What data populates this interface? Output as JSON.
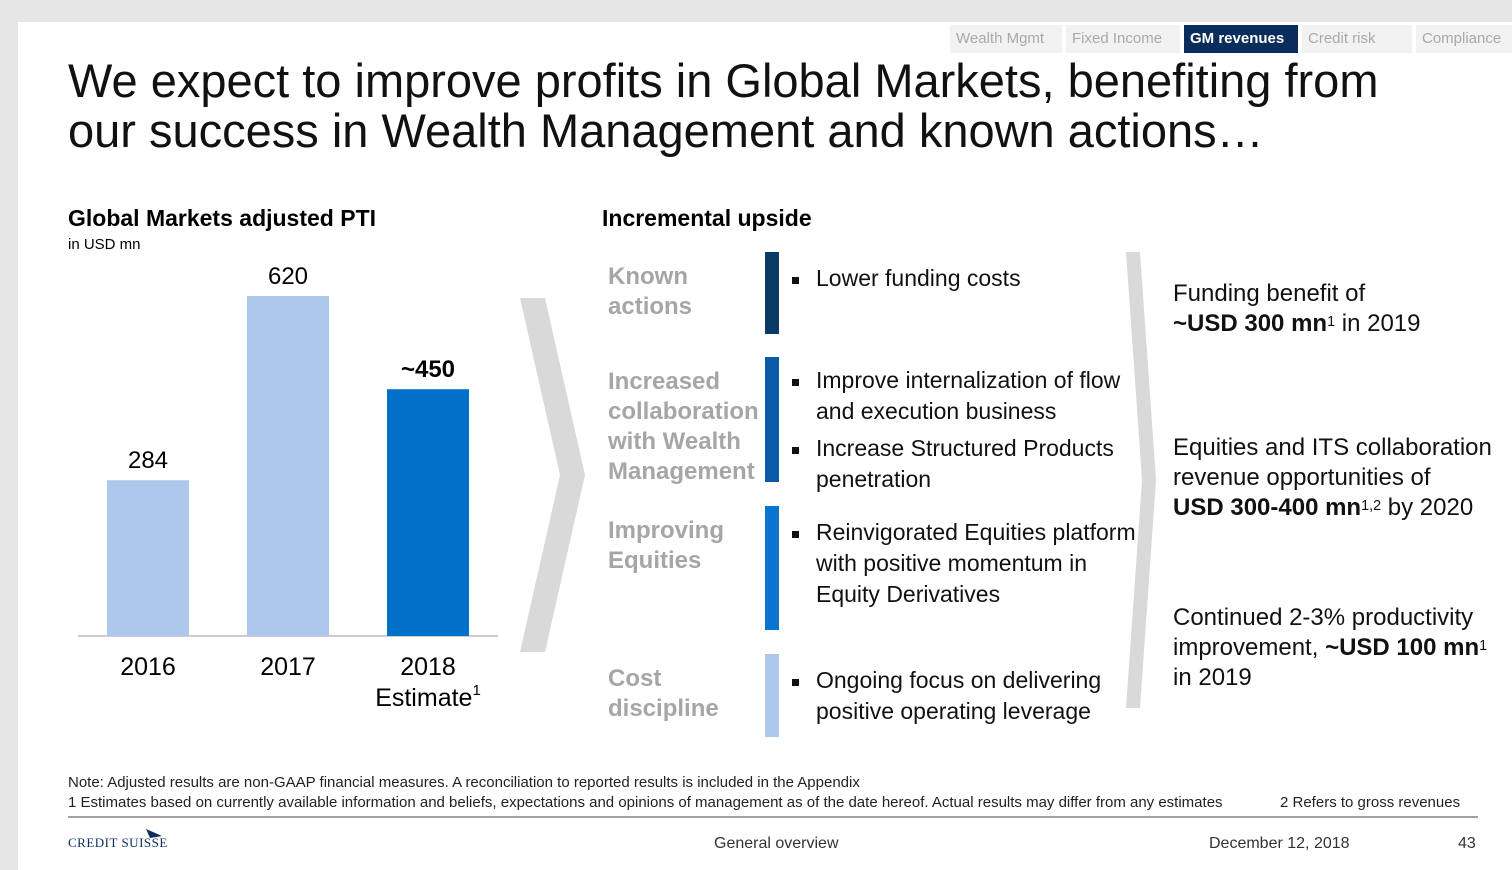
{
  "nav": {
    "tabs": [
      "Wealth Mgmt",
      "Fixed Income",
      "GM revenues",
      "Credit risk",
      "Compliance"
    ],
    "active": 2
  },
  "title": [
    "We expect to improve profits in Global Markets, benefiting from",
    "our success in Wealth Management and known actions…"
  ],
  "chart_data": {
    "type": "bar",
    "title": "Global Markets adjusted PTI",
    "subtitle": "in USD mn",
    "categories": [
      "2016",
      "2017",
      "2018"
    ],
    "estimate_label": "Estimate",
    "estimate_footnote": "1",
    "values": [
      284,
      620,
      450
    ],
    "value_labels": [
      "284",
      "620",
      "~450"
    ],
    "colors": [
      "#adc8ea",
      "#adc8ea",
      "#0070c8"
    ]
  },
  "upside": {
    "title": "Incremental upside",
    "rows": [
      {
        "label": [
          "Known",
          "actions"
        ],
        "color": "#0b3a66",
        "bullets": [
          [
            "Lower funding costs"
          ]
        ]
      },
      {
        "label": [
          "Increased",
          "collaboration",
          "with Wealth",
          "Management"
        ],
        "color": "#0a5aa8",
        "bullets": [
          [
            "Improve internalization of flow",
            "and execution business"
          ],
          [
            "Increase Structured Products",
            "penetration"
          ]
        ]
      },
      {
        "label": [
          "Improving",
          "Equities"
        ],
        "color": "#0a74d0",
        "bullets": [
          [
            "Reinvigorated Equities platform",
            "with positive momentum in",
            "Equity Derivatives"
          ]
        ]
      },
      {
        "label": [
          "Cost",
          "discipline"
        ],
        "color": "#adc8ea",
        "bullets": [
          [
            "Ongoing focus on delivering",
            "positive operating leverage"
          ]
        ]
      }
    ]
  },
  "outcomes": [
    [
      [
        {
          "text": "Funding benefit of"
        }
      ],
      [
        {
          "text": "~USD 300 mn",
          "bold": true
        },
        {
          "text": "1",
          "sup": true
        },
        {
          "text": " in 2019"
        }
      ]
    ],
    [
      [
        {
          "text": "Equities and ITS collaboration"
        }
      ],
      [
        {
          "text": "revenue opportunities of"
        }
      ],
      [
        {
          "text": "USD 300-400 mn",
          "bold": true
        },
        {
          "text": "1,2",
          "sup": true
        },
        {
          "text": " by 2020"
        }
      ]
    ],
    [
      [
        {
          "text": "Continued 2-3% productivity"
        }
      ],
      [
        {
          "text": "improvement, "
        },
        {
          "text": "~USD 100 mn",
          "bold": true
        },
        {
          "text": "1",
          "sup": true
        }
      ],
      [
        {
          "text": "in 2019"
        }
      ]
    ]
  ],
  "note": "Note: Adjusted results are non-GAAP financial measures. A reconciliation to reported results is included in the Appendix",
  "footnotes": [
    "1 Estimates based on currently available information and beliefs, expectations and opinions of management as of the date hereof. Actual results may differ from any estimates",
    "2 Refers to gross revenues"
  ],
  "footer": {
    "logo": "CREDIT SUISSE",
    "section": "General overview",
    "date": "December 12, 2018",
    "page": 43
  }
}
